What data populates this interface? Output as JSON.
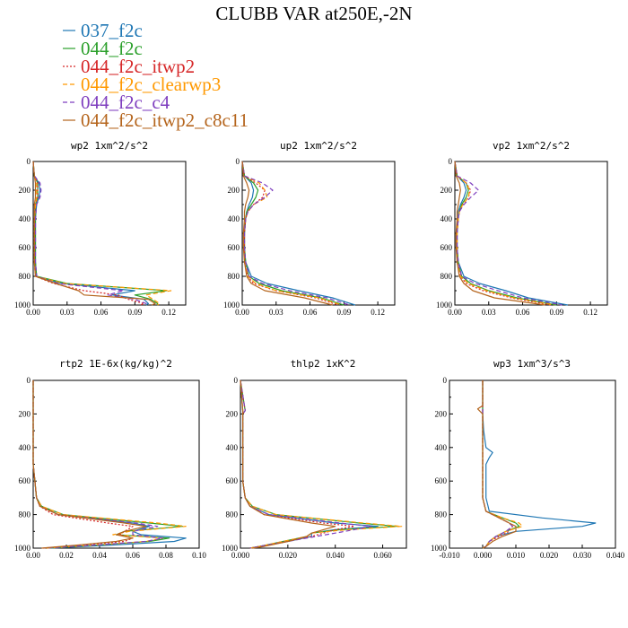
{
  "figure": {
    "title": "CLUBB VAR at250E,-2N"
  },
  "legend": [
    {
      "name": "037_f2c",
      "color": "#1f77b4",
      "dash": "solid"
    },
    {
      "name": "044_f2c",
      "color": "#2ca02c",
      "dash": "solid"
    },
    {
      "name": "044_f2c_itwp2",
      "color": "#d62728",
      "dash": "dotted"
    },
    {
      "name": "044_f2c_clearwp3",
      "color": "#ff9900",
      "dash": "dashed"
    },
    {
      "name": "044_f2c_c4",
      "color": "#7f3fbf",
      "dash": "dashed"
    },
    {
      "name": "044_f2c_itwp2_c8c11",
      "color": "#b5651d",
      "dash": "solid"
    }
  ],
  "chart_data": [
    {
      "type": "line",
      "title": "wp2  1xm^2/s^2",
      "xlim": [
        0,
        0.135
      ],
      "ylim": [
        1000,
        0
      ],
      "xticks": [
        0,
        0.03,
        0.06,
        0.09,
        0.12
      ],
      "xticklabels": [
        "0.00",
        "0.03",
        "0.06",
        "0.09",
        "0.12"
      ],
      "yticks": [
        0,
        200,
        400,
        600,
        800,
        1000
      ],
      "yticklabels": [
        "0",
        "200",
        "400",
        "600",
        "800",
        "1000"
      ],
      "y": [
        0,
        100,
        150,
        200,
        250,
        300,
        400,
        500,
        600,
        700,
        800,
        850,
        900,
        930,
        960,
        990,
        1000
      ],
      "series": [
        {
          "values": [
            0,
            0.001,
            0.005,
            0.006,
            0.005,
            0.003,
            0.002,
            0.002,
            0.002,
            0.002,
            0.003,
            0.025,
            0.09,
            0.07,
            0.098,
            0.102,
            0.1
          ]
        },
        {
          "values": [
            0,
            0.001,
            0.004,
            0.004,
            0.004,
            0.002,
            0.002,
            0.002,
            0.002,
            0.002,
            0.003,
            0.03,
            0.118,
            0.09,
            0.104,
            0.11,
            0.11
          ]
        },
        {
          "values": [
            0,
            0.001,
            0.004,
            0.004,
            0.004,
            0.002,
            0.001,
            0.001,
            0.001,
            0.001,
            0.002,
            0.018,
            0.045,
            0.075,
            0.084,
            0.098,
            0.095
          ]
        },
        {
          "values": [
            0,
            0.001,
            0.003,
            0.003,
            0.003,
            0.002,
            0.001,
            0.001,
            0.001,
            0.001,
            0.002,
            0.028,
            0.122,
            0.1,
            0.106,
            0.112,
            0.11
          ]
        },
        {
          "values": [
            0,
            0.001,
            0.006,
            0.007,
            0.006,
            0.003,
            0.002,
            0.002,
            0.002,
            0.002,
            0.003,
            0.022,
            0.08,
            0.066,
            0.09,
            0.1,
            0.098
          ]
        },
        {
          "values": [
            0,
            0.001,
            0.002,
            0.002,
            0.002,
            0.001,
            0.001,
            0.001,
            0.001,
            0.001,
            0.002,
            0.02,
            0.04,
            0.045,
            0.102,
            0.108,
            0.105
          ]
        }
      ]
    },
    {
      "type": "line",
      "title": "up2  1xm^2/s^2",
      "xlim": [
        0,
        0.135
      ],
      "ylim": [
        1000,
        0
      ],
      "xticks": [
        0,
        0.03,
        0.06,
        0.09,
        0.12
      ],
      "xticklabels": [
        "0.00",
        "0.03",
        "0.06",
        "0.09",
        "0.12"
      ],
      "yticks": [
        0,
        200,
        400,
        600,
        800,
        1000
      ],
      "yticklabels": [
        "0",
        "200",
        "400",
        "600",
        "800",
        "1000"
      ],
      "y": [
        0,
        100,
        150,
        200,
        250,
        300,
        350,
        400,
        500,
        600,
        700,
        800,
        850,
        900,
        950,
        1000
      ],
      "series": [
        {
          "values": [
            0,
            0.002,
            0.008,
            0.01,
            0.009,
            0.006,
            0.004,
            0.003,
            0.002,
            0.002,
            0.003,
            0.008,
            0.022,
            0.05,
            0.08,
            0.1
          ]
        },
        {
          "values": [
            0,
            0.002,
            0.01,
            0.014,
            0.012,
            0.008,
            0.004,
            0.003,
            0.002,
            0.002,
            0.003,
            0.006,
            0.015,
            0.035,
            0.07,
            0.09
          ]
        },
        {
          "values": [
            0,
            0.002,
            0.012,
            0.02,
            0.018,
            0.01,
            0.005,
            0.003,
            0.002,
            0.002,
            0.002,
            0.005,
            0.01,
            0.03,
            0.065,
            0.085
          ]
        },
        {
          "values": [
            0,
            0.002,
            0.015,
            0.02,
            0.022,
            0.01,
            0.005,
            0.003,
            0.002,
            0.002,
            0.002,
            0.005,
            0.012,
            0.03,
            0.068,
            0.088
          ]
        },
        {
          "values": [
            0,
            0.002,
            0.018,
            0.027,
            0.02,
            0.01,
            0.005,
            0.003,
            0.002,
            0.002,
            0.003,
            0.006,
            0.018,
            0.042,
            0.075,
            0.095
          ]
        },
        {
          "values": [
            0,
            0.001,
            0.004,
            0.006,
            0.005,
            0.003,
            0.002,
            0.002,
            0.001,
            0.001,
            0.002,
            0.004,
            0.008,
            0.02,
            0.055,
            0.08
          ]
        }
      ]
    },
    {
      "type": "line",
      "title": "vp2  1xm^2/s^2",
      "xlim": [
        0,
        0.135
      ],
      "ylim": [
        1000,
        0
      ],
      "xticks": [
        0,
        0.03,
        0.06,
        0.09,
        0.12
      ],
      "xticklabels": [
        "0.00",
        "0.03",
        "0.06",
        "0.09",
        "0.12"
      ],
      "yticks": [
        0,
        200,
        400,
        600,
        800,
        1000
      ],
      "yticklabels": [
        "0",
        "200",
        "400",
        "600",
        "800",
        "1000"
      ],
      "y": [
        0,
        100,
        150,
        200,
        250,
        300,
        350,
        400,
        500,
        600,
        700,
        800,
        850,
        900,
        950,
        1000
      ],
      "series": [
        {
          "values": [
            0,
            0.002,
            0.008,
            0.01,
            0.008,
            0.005,
            0.003,
            0.003,
            0.002,
            0.002,
            0.003,
            0.008,
            0.022,
            0.045,
            0.065,
            0.1
          ]
        },
        {
          "values": [
            0,
            0.002,
            0.01,
            0.012,
            0.01,
            0.006,
            0.004,
            0.003,
            0.002,
            0.002,
            0.003,
            0.006,
            0.014,
            0.03,
            0.055,
            0.09
          ]
        },
        {
          "values": [
            0,
            0.002,
            0.01,
            0.014,
            0.012,
            0.007,
            0.004,
            0.003,
            0.002,
            0.002,
            0.002,
            0.005,
            0.01,
            0.025,
            0.05,
            0.085
          ]
        },
        {
          "values": [
            0,
            0.002,
            0.01,
            0.013,
            0.012,
            0.007,
            0.004,
            0.003,
            0.002,
            0.002,
            0.002,
            0.005,
            0.012,
            0.028,
            0.052,
            0.088
          ]
        },
        {
          "values": [
            0,
            0.002,
            0.014,
            0.021,
            0.014,
            0.008,
            0.004,
            0.003,
            0.002,
            0.002,
            0.003,
            0.006,
            0.018,
            0.038,
            0.06,
            0.095
          ]
        },
        {
          "values": [
            0,
            0.001,
            0.004,
            0.005,
            0.004,
            0.003,
            0.002,
            0.002,
            0.001,
            0.001,
            0.002,
            0.004,
            0.008,
            0.016,
            0.035,
            0.08
          ]
        }
      ]
    },
    {
      "type": "line",
      "title": "rtp2  1E-6x(kg/kg)^2",
      "xlim": [
        0,
        0.1
      ],
      "ylim": [
        1000,
        0
      ],
      "xticks": [
        0,
        0.02,
        0.04,
        0.06,
        0.08,
        0.1
      ],
      "xticklabels": [
        "0.00",
        "0.02",
        "0.04",
        "0.06",
        "0.08",
        "0.10"
      ],
      "yticks": [
        0,
        200,
        400,
        600,
        800,
        1000
      ],
      "yticklabels": [
        "0",
        "200",
        "400",
        "600",
        "800",
        "1000"
      ],
      "y": [
        0,
        500,
        600,
        700,
        750,
        800,
        850,
        870,
        900,
        920,
        940,
        960,
        980,
        1000
      ],
      "series": [
        {
          "values": [
            0,
            0,
            0.001,
            0.002,
            0.005,
            0.015,
            0.06,
            0.07,
            0.06,
            0.065,
            0.092,
            0.085,
            0.05,
            0.01
          ]
        },
        {
          "values": [
            0,
            0,
            0.001,
            0.002,
            0.005,
            0.018,
            0.07,
            0.09,
            0.055,
            0.05,
            0.082,
            0.07,
            0.04,
            0.008
          ]
        },
        {
          "values": [
            0,
            0,
            0.001,
            0.002,
            0.004,
            0.012,
            0.045,
            0.06,
            0.055,
            0.052,
            0.06,
            0.055,
            0.03,
            0.006
          ]
        },
        {
          "values": [
            0,
            0,
            0.001,
            0.002,
            0.005,
            0.018,
            0.075,
            0.092,
            0.058,
            0.048,
            0.078,
            0.068,
            0.04,
            0.008
          ]
        },
        {
          "values": [
            0,
            0,
            0.001,
            0.002,
            0.004,
            0.015,
            0.062,
            0.075,
            0.06,
            0.06,
            0.078,
            0.068,
            0.038,
            0.007
          ]
        },
        {
          "values": [
            0,
            0,
            0.001,
            0.002,
            0.004,
            0.015,
            0.055,
            0.068,
            0.055,
            0.05,
            0.06,
            0.05,
            0.028,
            0.005
          ]
        }
      ]
    },
    {
      "type": "line",
      "title": "thlp2  1xK^2",
      "xlim": [
        0,
        0.07
      ],
      "ylim": [
        1000,
        0
      ],
      "xticks": [
        0,
        0.02,
        0.04,
        0.06
      ],
      "xticklabels": [
        "0.000",
        "0.020",
        "0.040",
        "0.060"
      ],
      "yticks": [
        0,
        200,
        400,
        600,
        800,
        1000
      ],
      "yticklabels": [
        "0",
        "200",
        "400",
        "600",
        "800",
        "1000"
      ],
      "y": [
        0,
        180,
        200,
        500,
        600,
        700,
        750,
        800,
        850,
        870,
        890,
        910,
        930,
        960,
        990,
        1000
      ],
      "series": [
        {
          "values": [
            0,
            0.001,
            0.001,
            0.001,
            0.001,
            0.002,
            0.004,
            0.012,
            0.04,
            0.058,
            0.04,
            0.03,
            0.03,
            0.02,
            0.008,
            0.004
          ]
        },
        {
          "values": [
            0,
            0.002,
            0.001,
            0.001,
            0.001,
            0.002,
            0.005,
            0.015,
            0.05,
            0.066,
            0.042,
            0.03,
            0.028,
            0.018,
            0.008,
            0.004
          ]
        },
        {
          "values": [
            0,
            0.002,
            0.001,
            0.001,
            0.001,
            0.002,
            0.004,
            0.01,
            0.035,
            0.048,
            0.04,
            0.035,
            0.03,
            0.02,
            0.008,
            0.004
          ]
        },
        {
          "values": [
            0,
            0.001,
            0.001,
            0.001,
            0.001,
            0.002,
            0.005,
            0.015,
            0.052,
            0.068,
            0.045,
            0.03,
            0.028,
            0.018,
            0.008,
            0.004
          ]
        },
        {
          "values": [
            0,
            0.002,
            0.001,
            0.001,
            0.001,
            0.002,
            0.004,
            0.012,
            0.042,
            0.055,
            0.048,
            0.04,
            0.032,
            0.02,
            0.008,
            0.004
          ]
        },
        {
          "values": [
            0,
            0.001,
            0.001,
            0.001,
            0.001,
            0.002,
            0.004,
            0.01,
            0.03,
            0.04,
            0.035,
            0.03,
            0.028,
            0.02,
            0.01,
            0.005
          ]
        }
      ]
    },
    {
      "type": "line",
      "title": "wp3  1xm^3/s^3",
      "xlim": [
        -0.01,
        0.04
      ],
      "ylim": [
        1000,
        0
      ],
      "xticks": [
        -0.01,
        0,
        0.01,
        0.02,
        0.03,
        0.04
      ],
      "xticklabels": [
        "-0.010",
        "0.000",
        "0.010",
        "0.020",
        "0.030",
        "0.040"
      ],
      "yticks": [
        0,
        200,
        400,
        600,
        800,
        1000
      ],
      "yticklabels": [
        "0",
        "200",
        "400",
        "600",
        "800",
        "1000"
      ],
      "y": [
        0,
        100,
        150,
        170,
        200,
        300,
        400,
        430,
        460,
        500,
        600,
        700,
        780,
        820,
        850,
        870,
        900,
        930,
        960,
        990,
        1000
      ],
      "series": [
        {
          "values": [
            0,
            0,
            0,
            0,
            0,
            0.0003,
            0.001,
            0.003,
            0.002,
            0.001,
            0.001,
            0.001,
            0.002,
            0.018,
            0.034,
            0.03,
            0.01,
            0.004,
            0.002,
            0.001,
            0
          ]
        },
        {
          "values": [
            0,
            0,
            0,
            0,
            0,
            0,
            0,
            0,
            0,
            0,
            0,
            0,
            0.001,
            0.006,
            0.01,
            0.011,
            0.007,
            0.004,
            0.002,
            0.001,
            0
          ]
        },
        {
          "values": [
            0,
            0,
            0,
            0,
            0,
            0,
            0,
            0,
            0,
            0,
            0,
            0,
            0.001,
            0.005,
            0.008,
            0.009,
            0.008,
            0.005,
            0.002,
            0.001,
            0
          ]
        },
        {
          "values": [
            0,
            0,
            0,
            0,
            0,
            0,
            0,
            0,
            0,
            0,
            0,
            0,
            0.001,
            0.006,
            0.011,
            0.012,
            0.007,
            0.004,
            0.002,
            0.001,
            0
          ]
        },
        {
          "values": [
            0,
            0,
            0,
            0,
            0,
            0,
            0,
            0,
            0,
            0,
            0,
            0,
            0.001,
            0.005,
            0.008,
            0.009,
            0.007,
            0.004,
            0.002,
            0.001,
            0
          ]
        },
        {
          "values": [
            0,
            0,
            0,
            -0.0015,
            0,
            0,
            0,
            0,
            0,
            0,
            0,
            0,
            0.001,
            0.005,
            0.008,
            0.01,
            0.01,
            0.006,
            0.003,
            0.001,
            0
          ]
        }
      ]
    }
  ]
}
